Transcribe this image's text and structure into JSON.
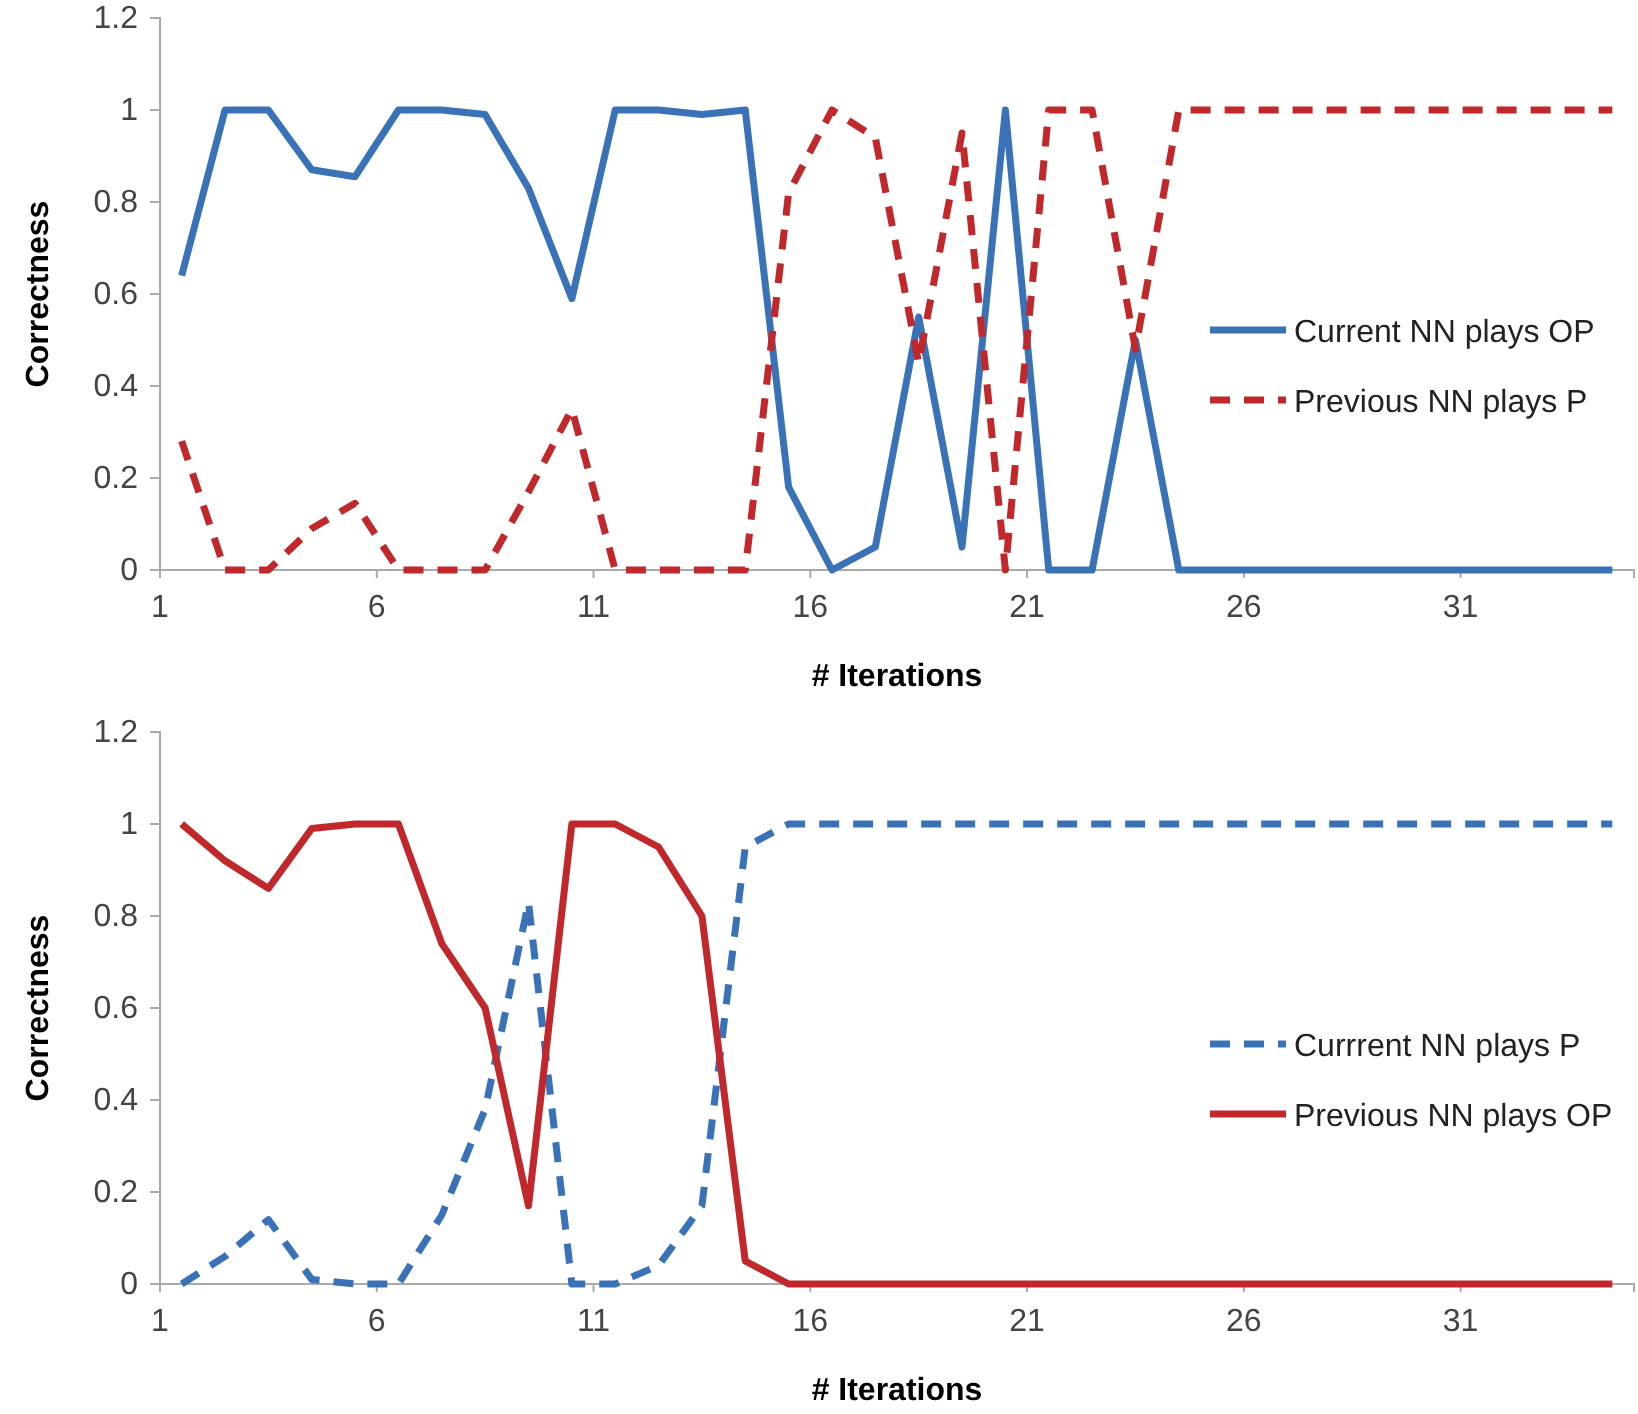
{
  "chart_data": [
    {
      "type": "line",
      "xlabel": "# Iterations",
      "ylabel": "Correctness",
      "x": [
        1.5,
        2.5,
        3.5,
        4.5,
        5.5,
        6.5,
        7.5,
        8.5,
        9.5,
        10.5,
        11.5,
        12.5,
        13.5,
        14.5,
        15.5,
        16.5,
        17.5,
        18.5,
        19.5,
        20.5,
        21.5,
        22.5,
        23.5,
        24.5,
        25.5,
        26.5,
        27.5,
        28.5,
        29.5,
        30.5,
        31.5,
        32.5,
        33.5,
        34.5
      ],
      "xlim": [
        1,
        35
      ],
      "xticks": [
        1,
        6,
        11,
        16,
        21,
        26,
        31
      ],
      "ylim": [
        0,
        1.2
      ],
      "yticks": [
        0,
        0.2,
        0.4,
        0.6,
        0.8,
        1,
        1.2
      ],
      "grid": false,
      "legend": "right",
      "marker": "none",
      "series": [
        {
          "name": "Current NN plays OP",
          "color": "#3a72b8",
          "line_style": "solid",
          "values": [
            0.64,
            1,
            1,
            0.87,
            0.855,
            1,
            1,
            0.99,
            0.83,
            0.59,
            1,
            1,
            0.99,
            1,
            0.18,
            0,
            0.05,
            0.55,
            0.05,
            1,
            0,
            0,
            0.5,
            0,
            0,
            0,
            0,
            0,
            0,
            0,
            0,
            0,
            0,
            0
          ]
        },
        {
          "name": "Previous NN plays P",
          "color": "#c0282c",
          "line_style": "dashed",
          "values": [
            0.28,
            0,
            0,
            0.09,
            0.145,
            0,
            0,
            0,
            0.17,
            0.35,
            0,
            0,
            0,
            0,
            0.82,
            1,
            0.94,
            0.45,
            0.95,
            0,
            1,
            1,
            0.48,
            1,
            1,
            1,
            1,
            1,
            1,
            1,
            1,
            1,
            1,
            1
          ]
        }
      ]
    },
    {
      "type": "line",
      "xlabel": "# Iterations",
      "ylabel": "Correctness",
      "x": [
        1.5,
        2.5,
        3.5,
        4.5,
        5.5,
        6.5,
        7.5,
        8.5,
        9.5,
        10.5,
        11.5,
        12.5,
        13.5,
        14.5,
        15.5,
        16.5,
        17.5,
        18.5,
        19.5,
        20.5,
        21.5,
        22.5,
        23.5,
        24.5,
        25.5,
        26.5,
        27.5,
        28.5,
        29.5,
        30.5,
        31.5,
        32.5,
        33.5,
        34.5
      ],
      "xlim": [
        1,
        35
      ],
      "xticks": [
        1,
        6,
        11,
        16,
        21,
        26,
        31
      ],
      "ylim": [
        0,
        1.2
      ],
      "yticks": [
        0,
        0.2,
        0.4,
        0.6,
        0.8,
        1,
        1.2
      ],
      "grid": false,
      "legend": "right",
      "marker": "none",
      "series": [
        {
          "name": "Currrent NN plays P",
          "color": "#3a72b8",
          "line_style": "dashed",
          "values": [
            0,
            0.06,
            0.14,
            0.01,
            0,
            0,
            0.15,
            0.38,
            0.83,
            0,
            0,
            0.04,
            0.17,
            0.95,
            1,
            1,
            1,
            1,
            1,
            1,
            1,
            1,
            1,
            1,
            1,
            1,
            1,
            1,
            1,
            1,
            1,
            1,
            1,
            1
          ]
        },
        {
          "name": "Previous NN plays OP",
          "color": "#c0282c",
          "line_style": "solid",
          "values": [
            1,
            0.92,
            0.86,
            0.99,
            1,
            1,
            0.74,
            0.6,
            0.17,
            1,
            1,
            0.95,
            0.8,
            0.05,
            0,
            0,
            0,
            0,
            0,
            0,
            0,
            0,
            0,
            0,
            0,
            0,
            0,
            0,
            0,
            0,
            0,
            0,
            0,
            0
          ]
        }
      ]
    }
  ]
}
